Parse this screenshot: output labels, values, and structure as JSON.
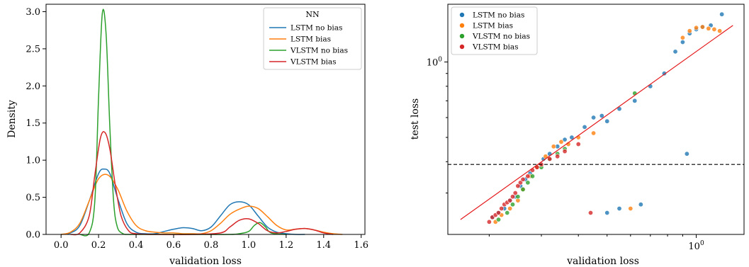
{
  "colors": {
    "LSTM no bias": "#1f77b4",
    "LSTM bias": "#ff7f0e",
    "VLSTM no bias": "#2ca02c",
    "VLSTM bias": "#d62728",
    "fit_line": "#e41a1c",
    "hline": "#000000"
  },
  "chart_data": [
    {
      "type": "line",
      "kind": "kde",
      "xlabel": "validation loss",
      "ylabel": "Density",
      "xlim": [
        -0.08,
        1.62
      ],
      "ylim": [
        0,
        3.1
      ],
      "xticks": [
        0.0,
        0.2,
        0.4,
        0.6,
        0.8,
        1.0,
        1.2,
        1.4,
        1.6
      ],
      "xtick_labels": [
        "0.0",
        "0.2",
        "0.4",
        "0.6",
        "0.8",
        "1.0",
        "1.2",
        "1.4",
        "1.6"
      ],
      "yticks": [
        0.0,
        0.5,
        1.0,
        1.5,
        2.0,
        2.5,
        3.0
      ],
      "ytick_labels": [
        "0.0",
        "0.5",
        "1.0",
        "1.5",
        "2.0",
        "2.5",
        "3.0"
      ],
      "grid": false,
      "legend": {
        "title": "NN",
        "placement": "upper-right",
        "entries": [
          "LSTM no bias",
          "LSTM bias",
          "VLSTM no bias",
          "VLSTM bias"
        ]
      },
      "series": [
        {
          "name": "LSTM no bias",
          "x": [
            0.0,
            0.05,
            0.1,
            0.15,
            0.2,
            0.23,
            0.26,
            0.3,
            0.35,
            0.4,
            0.45,
            0.5,
            0.55,
            0.6,
            0.65,
            0.7,
            0.75,
            0.8,
            0.85,
            0.9,
            0.95,
            1.0,
            1.05,
            1.1,
            1.15,
            1.2,
            1.25,
            1.3
          ],
          "y": [
            0.0,
            0.02,
            0.12,
            0.45,
            0.82,
            0.88,
            0.82,
            0.5,
            0.15,
            0.03,
            0.01,
            0.01,
            0.04,
            0.07,
            0.09,
            0.08,
            0.05,
            0.1,
            0.25,
            0.4,
            0.44,
            0.4,
            0.25,
            0.1,
            0.03,
            0.01,
            0.0,
            0.0
          ]
        },
        {
          "name": "LSTM bias",
          "x": [
            0.0,
            0.05,
            0.1,
            0.15,
            0.2,
            0.25,
            0.3,
            0.35,
            0.4,
            0.45,
            0.5,
            0.55,
            0.6,
            0.65,
            0.7,
            0.75,
            0.8,
            0.85,
            0.9,
            0.95,
            1.0,
            1.05,
            1.1,
            1.15,
            1.2,
            1.25,
            1.3,
            1.35,
            1.4,
            1.45,
            1.5
          ],
          "y": [
            0.0,
            0.03,
            0.15,
            0.45,
            0.75,
            0.8,
            0.62,
            0.32,
            0.12,
            0.05,
            0.03,
            0.02,
            0.02,
            0.01,
            0.01,
            0.01,
            0.05,
            0.15,
            0.27,
            0.34,
            0.38,
            0.35,
            0.24,
            0.12,
            0.06,
            0.07,
            0.08,
            0.06,
            0.03,
            0.01,
            0.0
          ]
        },
        {
          "name": "VLSTM no bias",
          "x": [
            0.1,
            0.15,
            0.18,
            0.2,
            0.22,
            0.24,
            0.26,
            0.28,
            0.3,
            0.33,
            0.36,
            0.4,
            0.5,
            0.7,
            0.9,
            0.95,
            1.0,
            1.03,
            1.06,
            1.09,
            1.12,
            1.2
          ],
          "y": [
            0.0,
            0.02,
            0.45,
            1.85,
            2.98,
            2.7,
            1.45,
            0.45,
            0.1,
            0.01,
            0.0,
            0.0,
            0.0,
            0.0,
            0.0,
            0.01,
            0.04,
            0.12,
            0.16,
            0.1,
            0.02,
            0.0
          ]
        },
        {
          "name": "VLSTM bias",
          "x": [
            0.05,
            0.1,
            0.15,
            0.18,
            0.21,
            0.235,
            0.26,
            0.29,
            0.32,
            0.36,
            0.4,
            0.5,
            0.7,
            0.85,
            0.9,
            0.95,
            1.0,
            1.05,
            1.1,
            1.15,
            1.2,
            1.25,
            1.3,
            1.35,
            1.4,
            1.45
          ],
          "y": [
            0.0,
            0.02,
            0.25,
            0.8,
            1.3,
            1.37,
            1.15,
            0.65,
            0.25,
            0.05,
            0.01,
            0.0,
            0.0,
            0.02,
            0.1,
            0.19,
            0.21,
            0.15,
            0.05,
            0.02,
            0.04,
            0.07,
            0.08,
            0.06,
            0.02,
            0.0
          ]
        }
      ]
    },
    {
      "type": "scatter",
      "xlabel": "validation loss",
      "ylabel": "test loss",
      "xscale": "log",
      "yscale": "log",
      "xlim": [
        0.145,
        1.45
      ],
      "ylim": [
        0.205,
        1.7
      ],
      "xticks": [
        1.0
      ],
      "xtick_labels": [
        "10^0"
      ],
      "yticks": [
        1.0
      ],
      "ytick_labels": [
        "10^0"
      ],
      "grid": false,
      "hline": 0.39,
      "fit_line": {
        "x": [
          0.16,
          1.33
        ],
        "y": [
          0.235,
          1.4
        ]
      },
      "legend": {
        "placement": "upper-left",
        "entries": [
          "LSTM no bias",
          "LSTM bias",
          "VLSTM no bias",
          "VLSTM bias"
        ]
      },
      "series": [
        {
          "name": "LSTM no bias",
          "x": [
            0.205,
            0.215,
            0.225,
            0.235,
            0.245,
            0.255,
            0.265,
            0.275,
            0.29,
            0.305,
            0.32,
            0.34,
            0.36,
            0.38,
            0.42,
            0.45,
            0.48,
            0.5,
            0.55,
            0.62,
            0.7,
            0.78,
            0.85,
            0.9,
            0.95,
            1.0,
            1.05,
            1.12,
            1.22,
            0.93,
            0.5,
            0.55,
            0.65
          ],
          "y": [
            0.24,
            0.25,
            0.26,
            0.28,
            0.29,
            0.32,
            0.34,
            0.36,
            0.38,
            0.41,
            0.43,
            0.46,
            0.49,
            0.5,
            0.55,
            0.6,
            0.61,
            0.58,
            0.65,
            0.7,
            0.8,
            0.9,
            1.1,
            1.2,
            1.3,
            1.35,
            1.38,
            1.4,
            1.55,
            0.43,
            0.25,
            0.26,
            0.27
          ]
        },
        {
          "name": "LSTM bias",
          "x": [
            0.21,
            0.22,
            0.235,
            0.25,
            0.26,
            0.275,
            0.29,
            0.31,
            0.33,
            0.35,
            0.37,
            0.4,
            0.45,
            0.9,
            0.95,
            1.0,
            1.05,
            1.1,
            1.15,
            1.2,
            0.6
          ],
          "y": [
            0.23,
            0.245,
            0.26,
            0.28,
            0.31,
            0.35,
            0.38,
            0.42,
            0.46,
            0.48,
            0.47,
            0.5,
            0.52,
            1.25,
            1.33,
            1.37,
            1.38,
            1.36,
            1.35,
            1.33,
            0.26
          ]
        },
        {
          "name": "VLSTM no bias",
          "x": [
            0.215,
            0.23,
            0.24,
            0.25,
            0.26,
            0.27,
            0.28,
            0.3,
            0.32,
            0.34,
            0.36,
            0.62
          ],
          "y": [
            0.235,
            0.25,
            0.27,
            0.29,
            0.31,
            0.33,
            0.35,
            0.38,
            0.41,
            0.43,
            0.45,
            0.75
          ]
        },
        {
          "name": "VLSTM bias",
          "x": [
            0.2,
            0.205,
            0.21,
            0.215,
            0.22,
            0.225,
            0.23,
            0.235,
            0.24,
            0.245,
            0.25,
            0.255,
            0.26,
            0.27,
            0.28,
            0.29,
            0.3,
            0.32,
            0.34,
            0.36,
            0.4,
            0.44
          ],
          "y": [
            0.23,
            0.24,
            0.245,
            0.25,
            0.26,
            0.27,
            0.275,
            0.28,
            0.29,
            0.3,
            0.32,
            0.33,
            0.34,
            0.35,
            0.37,
            0.38,
            0.39,
            0.41,
            0.42,
            0.44,
            0.47,
            0.25
          ]
        }
      ]
    }
  ]
}
